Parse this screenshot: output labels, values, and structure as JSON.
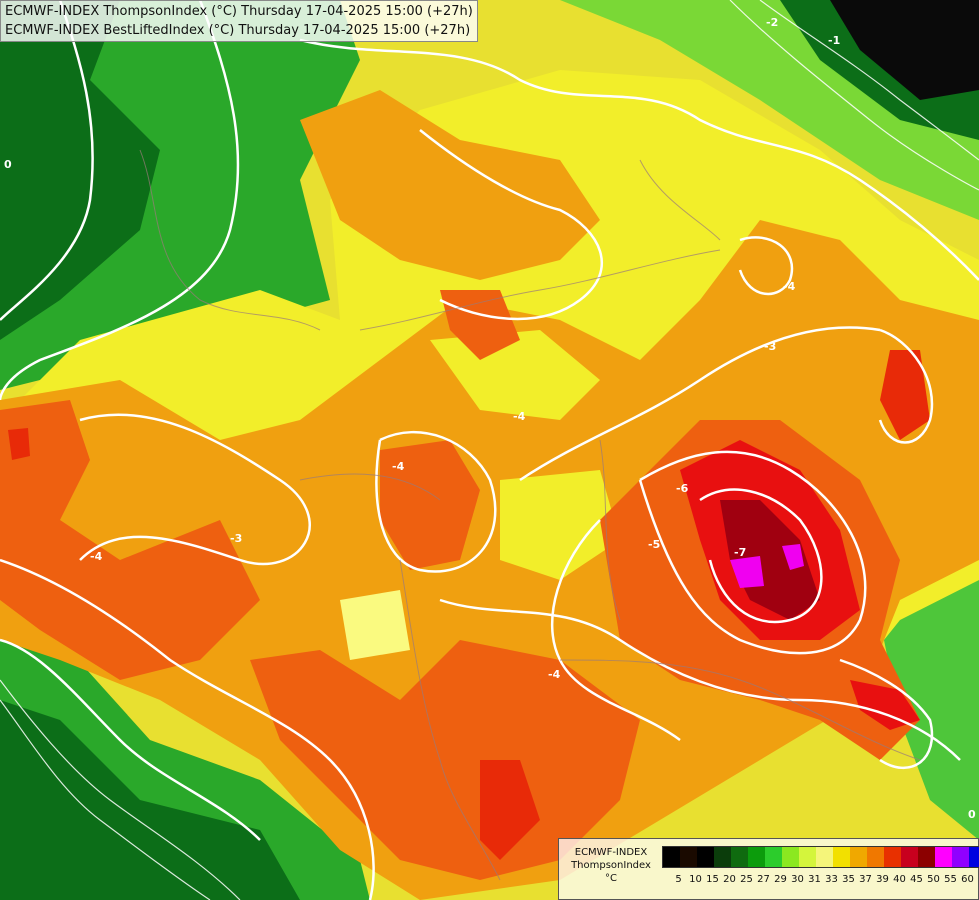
{
  "title_lines": [
    "ECMWF-INDEX ThompsonIndex (°C) Thursday 17-04-2025 15:00 (+27h)",
    "ECMWF-INDEX BestLiftedIndex (°C) Thursday 17-04-2025 15:00 (+27h)"
  ],
  "legend": {
    "line1": "ECMWF-INDEX",
    "line2": "ThompsonIndex",
    "line3": "°C",
    "ticks": [
      "5",
      "10",
      "15",
      "20",
      "25",
      "27",
      "29",
      "30",
      "31",
      "33",
      "35",
      "37",
      "39",
      "40",
      "45",
      "50",
      "55",
      "60"
    ],
    "colors": [
      "#000000",
      "#1a0a00",
      "#000000",
      "#0b3d0b",
      "#0f6b0f",
      "#0c9c0c",
      "#2ccc2c",
      "#8be820",
      "#d4f53c",
      "#f5f57a",
      "#f2e000",
      "#f0a800",
      "#f07800",
      "#e83000",
      "#c8001e",
      "#8c0000",
      "#ff00ff",
      "#9000ff",
      "#0000e0"
    ]
  },
  "contour_labels": [
    "-3",
    "-4",
    "-5",
    "-6",
    "-7",
    "-1",
    "-2",
    "0"
  ]
}
